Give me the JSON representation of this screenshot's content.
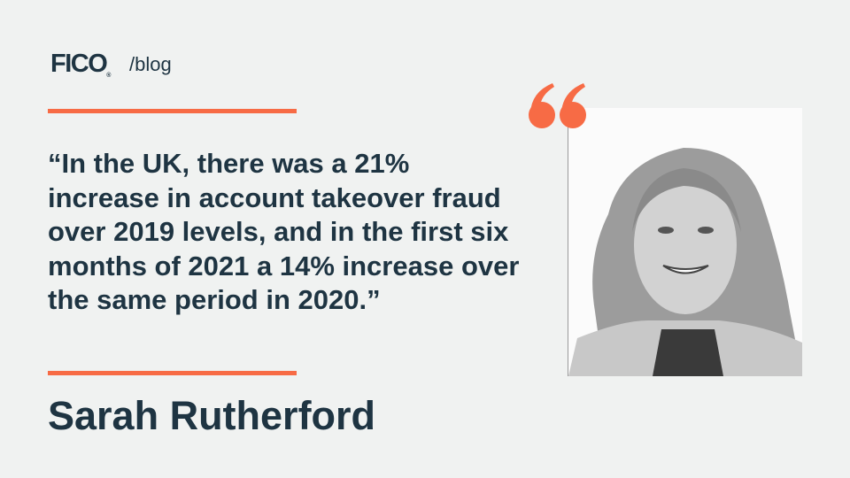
{
  "brand": {
    "logo_text": "FICO",
    "section": "/blog"
  },
  "quote": {
    "text": "“In the UK, there was a 21% increase in account takeover fraud over 2019 levels, and in the first six months of 2021 a 14% increase over the same period in 2020.”"
  },
  "author": {
    "name": "Sarah Rutherford"
  },
  "icons": {
    "quote_mark": "open-quote-icon"
  },
  "colors": {
    "accent": "#f76b45",
    "text": "#1e3442",
    "background": "#f0f2f1"
  }
}
